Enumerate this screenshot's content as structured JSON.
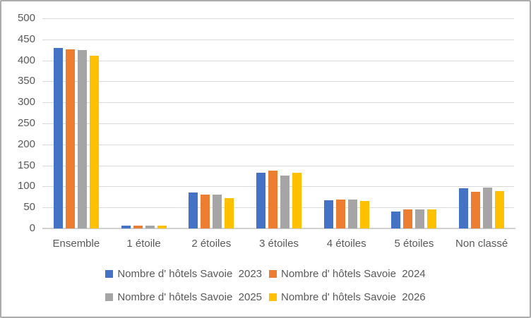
{
  "chart_data": {
    "type": "bar",
    "title": "",
    "categories": [
      "Ensemble",
      "1 étoile",
      "2 étoiles",
      "3 étoiles",
      "4 étoiles",
      "5 étoiles",
      "Non classé"
    ],
    "series": [
      {
        "name": "Nombre d' hôtels Savoie  2023",
        "color": "#4472C4",
        "values": [
          430,
          6,
          86,
          132,
          67,
          40,
          96
        ]
      },
      {
        "name": "Nombre d' hôtels Savoie  2024",
        "color": "#ED7D31",
        "values": [
          426,
          6,
          81,
          137,
          69,
          45,
          88
        ]
      },
      {
        "name": "Nombre d' hôtels Savoie  2025",
        "color": "#A5A5A5",
        "values": [
          424,
          6,
          80,
          126,
          68,
          45,
          97
        ]
      },
      {
        "name": "Nombre d' hôtels Savoie  2026",
        "color": "#FFC000",
        "values": [
          411,
          6,
          72,
          132,
          65,
          45,
          89
        ]
      }
    ],
    "xlabel": "",
    "ylabel": "",
    "ylim": [
      0,
      500
    ],
    "yticks": [
      0,
      50,
      100,
      150,
      200,
      250,
      300,
      350,
      400,
      450,
      500
    ],
    "grid": true,
    "legend_position": "bottom",
    "legend_rows": [
      [
        0,
        1
      ],
      [
        2,
        3
      ]
    ]
  },
  "style": {
    "gridline_color": "#D9D9D9",
    "axis_line_color": "#D0D0D0",
    "text_color": "#595959",
    "background_color": "#FFFFFF",
    "border_color": "#ABABAB"
  }
}
